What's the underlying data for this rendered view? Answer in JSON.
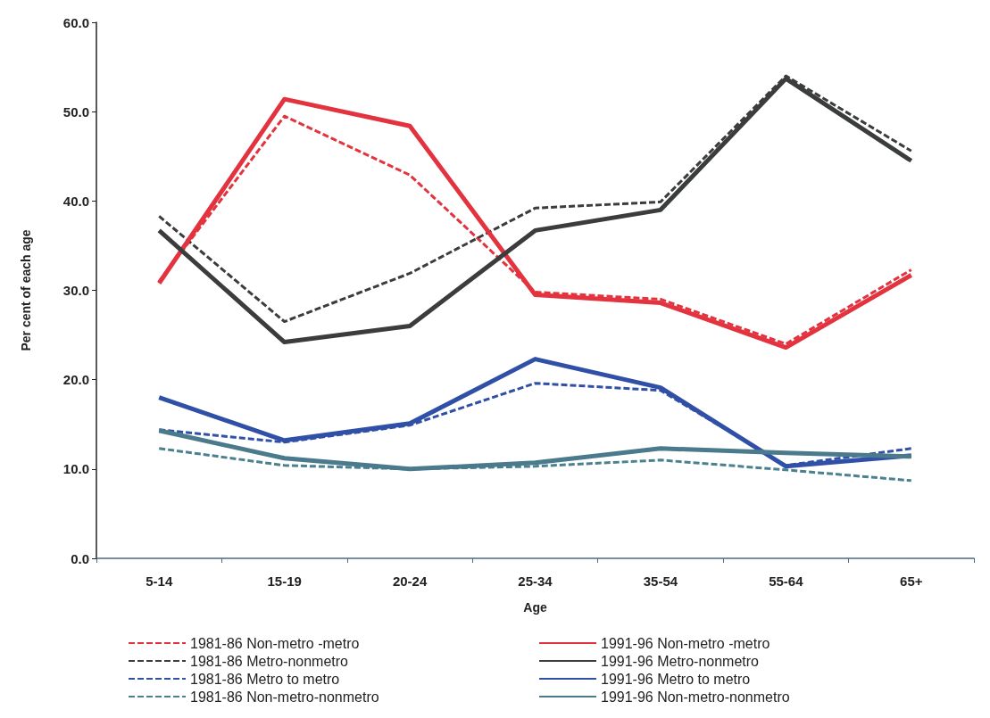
{
  "chart_data": {
    "type": "line",
    "xlabel": "Age",
    "ylabel": "Per cent of each age",
    "categories": [
      "5-14",
      "15-19",
      "20-24",
      "25-34",
      "35-54",
      "55-64",
      "65+"
    ],
    "series": [
      {
        "name": "1981-86 Non-metro -metro",
        "color": "#e2333f",
        "line_style": "dashed",
        "values": [
          31.0,
          49.5,
          42.9,
          29.8,
          29.0,
          24.0,
          32.3
        ]
      },
      {
        "name": "1981-86 Metro-nonmetro",
        "color": "#3a3d3b",
        "line_style": "dashed",
        "values": [
          38.3,
          26.5,
          31.9,
          39.2,
          39.9,
          54.0,
          45.6
        ]
      },
      {
        "name": "1981-86 Metro to metro",
        "color": "#3050a8",
        "line_style": "dashed",
        "values": [
          14.4,
          13.0,
          14.9,
          19.6,
          18.8,
          10.4,
          12.3
        ]
      },
      {
        "name": "1981-86 Non-metro-nonmetro",
        "color": "#4a8090",
        "line_style": "dashed",
        "values": [
          12.3,
          10.4,
          10.0,
          10.3,
          11.0,
          9.9,
          8.7
        ]
      },
      {
        "name": "1991-96 Non-metro -metro",
        "color": "#e2333f",
        "line_style": "solid",
        "values": [
          30.8,
          51.4,
          48.4,
          29.5,
          28.6,
          23.6,
          31.7
        ]
      },
      {
        "name": "1991-96 Metro-nonmetro",
        "color": "#3a3d3b",
        "line_style": "solid",
        "values": [
          36.7,
          24.2,
          26.0,
          36.7,
          39.0,
          53.7,
          44.5
        ]
      },
      {
        "name": "1991-96 Metro to metro",
        "color": "#3050a8",
        "line_style": "solid",
        "values": [
          18.0,
          13.2,
          15.1,
          22.3,
          19.1,
          10.3,
          11.5
        ]
      },
      {
        "name": "1991-96 Non-metro-nonmetro",
        "color": "#4a7a8c",
        "line_style": "solid",
        "values": [
          14.3,
          11.2,
          10.0,
          10.7,
          12.3,
          11.8,
          11.4
        ]
      }
    ],
    "ylim": [
      0,
      60
    ],
    "yticks": [
      {
        "value": 0,
        "label": "0.0"
      },
      {
        "value": 10,
        "label": "10.0"
      },
      {
        "value": 20,
        "label": "20.0"
      },
      {
        "value": 30,
        "label": "30.0"
      },
      {
        "value": 40,
        "label": "40.0"
      },
      {
        "value": 50,
        "label": "50.0"
      },
      {
        "value": 60,
        "label": "60.0"
      }
    ],
    "grid": false,
    "legend": "bottom",
    "marker": "none"
  }
}
